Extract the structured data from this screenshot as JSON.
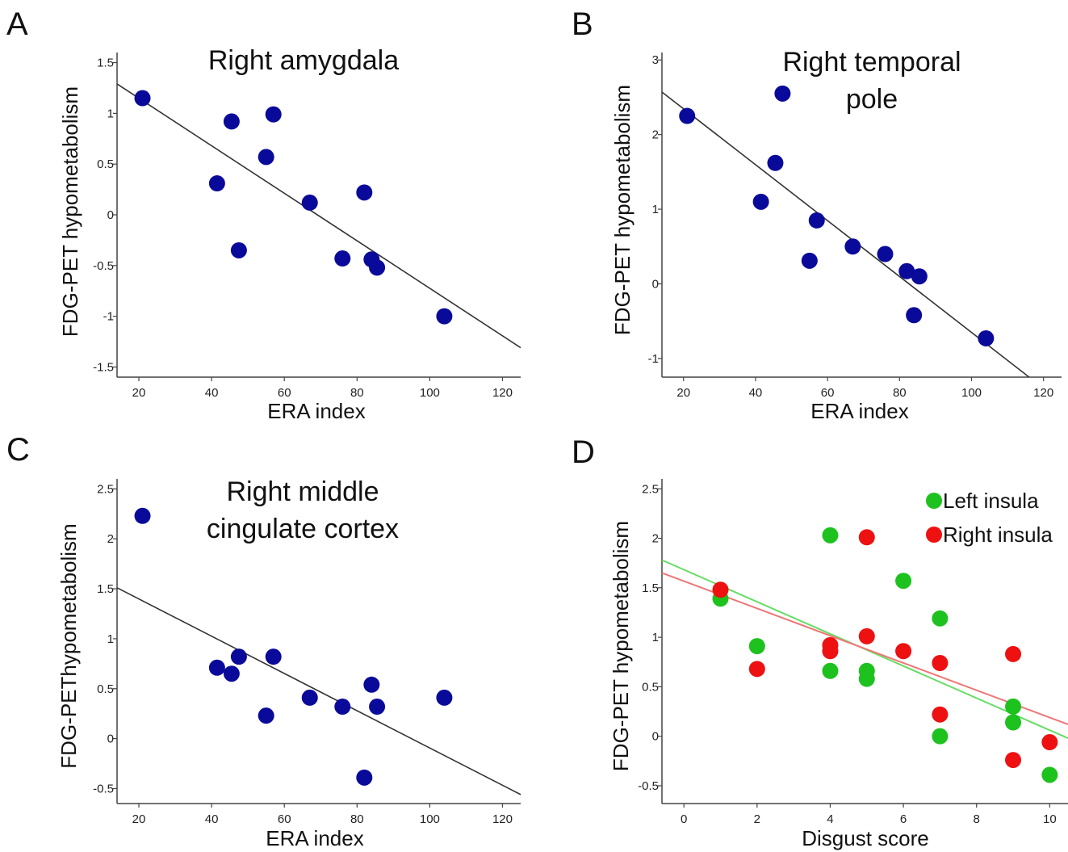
{
  "panel_letters": [
    "A",
    "B",
    "C",
    "D"
  ],
  "chart_data": [
    {
      "panel": "A",
      "type": "scatter",
      "title_lines": [
        "Right amygdala"
      ],
      "xlabel": "ERA index",
      "ylabel": "FDG-PET hypometabolism",
      "xlim": [
        14,
        125
      ],
      "ylim": [
        -1.6,
        1.6
      ],
      "xticks": [
        20,
        40,
        60,
        80,
        100,
        120
      ],
      "yticks": [
        -1.5,
        -1,
        -0.5,
        0,
        0.5,
        1,
        1.5
      ],
      "grid": false,
      "point_color": "#0a0a9a",
      "line_color": "#333333",
      "points": [
        [
          21,
          1.15
        ],
        [
          41.5,
          0.31
        ],
        [
          45.5,
          0.92
        ],
        [
          47.5,
          -0.35
        ],
        [
          55,
          0.57
        ],
        [
          57,
          0.99
        ],
        [
          67,
          0.12
        ],
        [
          76,
          -0.43
        ],
        [
          82,
          0.22
        ],
        [
          84,
          -0.44
        ],
        [
          85.5,
          -0.52
        ],
        [
          104,
          -1.0
        ]
      ],
      "fit_line": [
        [
          14,
          1.29
        ],
        [
          125,
          -1.31
        ]
      ]
    },
    {
      "panel": "B",
      "type": "scatter",
      "title_lines": [
        "Right temporal",
        "pole"
      ],
      "xlabel": "ERA index",
      "ylabel": "FDG-PET hypometabolism",
      "xlim": [
        14,
        125
      ],
      "ylim": [
        -1.25,
        3.1
      ],
      "xticks": [
        20,
        40,
        60,
        80,
        100,
        120
      ],
      "yticks": [
        -1,
        0,
        1,
        2,
        3
      ],
      "grid": false,
      "point_color": "#0a0a9a",
      "line_color": "#333333",
      "points": [
        [
          21,
          2.25
        ],
        [
          41.5,
          1.1
        ],
        [
          45.5,
          1.62
        ],
        [
          47.5,
          2.55
        ],
        [
          55,
          0.31
        ],
        [
          57,
          0.85
        ],
        [
          67,
          0.5
        ],
        [
          76,
          0.4
        ],
        [
          82,
          0.17
        ],
        [
          84,
          -0.42
        ],
        [
          85.5,
          0.1
        ],
        [
          104,
          -0.73
        ]
      ],
      "fit_line": [
        [
          14,
          2.57
        ],
        [
          116,
          -1.25
        ]
      ]
    },
    {
      "panel": "C",
      "type": "scatter",
      "title_lines": [
        "Right middle",
        "cingulate cortex"
      ],
      "xlabel": "ERA index",
      "ylabel": "FDG-PEThypometabolism",
      "xlim": [
        14,
        125
      ],
      "ylim": [
        -0.65,
        2.6
      ],
      "xticks": [
        20,
        40,
        60,
        80,
        100,
        120
      ],
      "yticks": [
        -0.5,
        0,
        0.5,
        1,
        1.5,
        2,
        2.5
      ],
      "grid": false,
      "point_color": "#0a0a9a",
      "line_color": "#333333",
      "points": [
        [
          21,
          2.23
        ],
        [
          41.5,
          0.71
        ],
        [
          45.5,
          0.65
        ],
        [
          47.5,
          0.82
        ],
        [
          55,
          0.23
        ],
        [
          57,
          0.82
        ],
        [
          67,
          0.41
        ],
        [
          76,
          0.32
        ],
        [
          82,
          -0.39
        ],
        [
          84,
          0.54
        ],
        [
          85.5,
          0.32
        ],
        [
          104,
          0.41
        ]
      ],
      "fit_line": [
        [
          14,
          1.51
        ],
        [
          125,
          -0.56
        ]
      ]
    },
    {
      "panel": "D",
      "type": "scatter",
      "title_lines": [],
      "xlabel": "Disgust score",
      "ylabel": "FDG-PET hypometabolism",
      "xlim": [
        -0.6,
        10.5
      ],
      "ylim": [
        -0.68,
        2.6
      ],
      "xticks": [
        0,
        2,
        4,
        6,
        8,
        10
      ],
      "yticks": [
        -0.5,
        0,
        0.5,
        1,
        1.5,
        2,
        2.5
      ],
      "grid": false,
      "legend": "top-right",
      "series": [
        {
          "name": "Left insula",
          "color": "#1ec21e",
          "line_color": "#66dd66",
          "points": [
            [
              1,
              1.39
            ],
            [
              2,
              0.91
            ],
            [
              4,
              2.03
            ],
            [
              4,
              0.66
            ],
            [
              5,
              0.66
            ],
            [
              5,
              0.58
            ],
            [
              6,
              1.57
            ],
            [
              7,
              1.19
            ],
            [
              7,
              0.0
            ],
            [
              9,
              0.3
            ],
            [
              9,
              0.14
            ],
            [
              10,
              -0.39
            ]
          ],
          "fit_line": [
            [
              -0.6,
              1.78
            ],
            [
              10.5,
              -0.02
            ]
          ]
        },
        {
          "name": "Right insula",
          "color": "#ee1111",
          "line_color": "#ee7777",
          "points": [
            [
              1,
              1.48
            ],
            [
              2,
              0.68
            ],
            [
              4,
              0.92
            ],
            [
              4,
              0.86
            ],
            [
              5,
              2.01
            ],
            [
              5,
              1.01
            ],
            [
              6,
              0.86
            ],
            [
              7,
              0.74
            ],
            [
              7,
              0.22
            ],
            [
              9,
              0.83
            ],
            [
              9,
              -0.24
            ],
            [
              10,
              -0.06
            ]
          ],
          "fit_line": [
            [
              -0.6,
              1.65
            ],
            [
              10.5,
              0.12
            ]
          ]
        }
      ]
    }
  ]
}
